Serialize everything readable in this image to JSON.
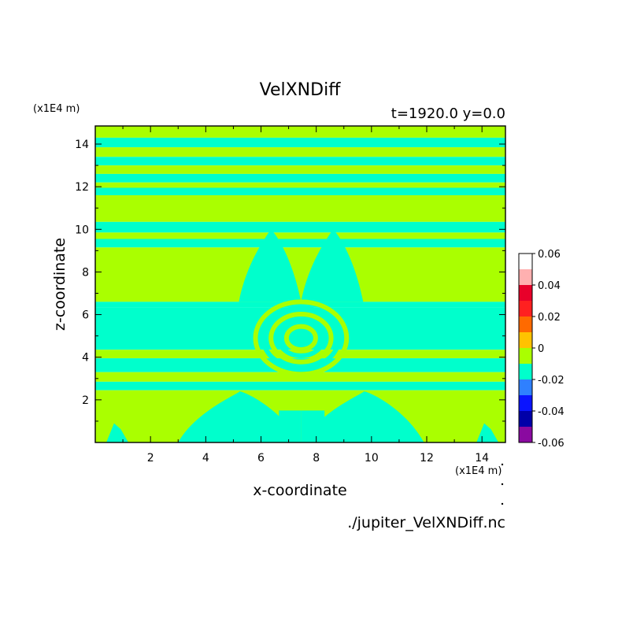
{
  "chart_data": {
    "type": "heatmap",
    "title": "VelXNDiff",
    "subtitle": "t=1920.0 y=0.0",
    "xlabel": "x-coordinate",
    "ylabel": "z-coordinate",
    "x_unit": "(x1E4 m)",
    "y_unit": "(x1E4 m)",
    "xlim": [
      0,
      14.85
    ],
    "ylim": [
      0,
      14.85
    ],
    "x_ticks": [
      "2",
      "4",
      "6",
      "8",
      "10",
      "12",
      "14"
    ],
    "x_tick_values": [
      2,
      4,
      6,
      8,
      10,
      12,
      14
    ],
    "y_ticks": [
      "2",
      "4",
      "6",
      "8",
      "10",
      "12",
      "14"
    ],
    "y_tick_values": [
      2,
      4,
      6,
      8,
      10,
      12,
      14
    ],
    "colorbar": {
      "levels": [
        -0.06,
        -0.05,
        -0.04,
        -0.03,
        -0.02,
        -0.01,
        0,
        0.01,
        0.02,
        0.03,
        0.04,
        0.05,
        0.06
      ],
      "colors": [
        "#8a0aa0",
        "#0000a8",
        "#0a14ff",
        "#2f80ff",
        "#00ffcc",
        "#aaff00",
        "#ffc200",
        "#ff6a00",
        "#ff2020",
        "#e8002a",
        "#ffb0b0",
        "#ffffff"
      ],
      "tick_labels": [
        "0.06",
        "0.04",
        "0.02",
        "0",
        "-0.02",
        "-0.04",
        "-0.06"
      ],
      "tick_values": [
        0.06,
        0.04,
        0.02,
        0,
        -0.02,
        -0.04,
        -0.06
      ]
    },
    "fill_colors": {
      "positive_small": "#aaff00",
      "negative_small": "#00ffcc"
    },
    "horizontal_bands": [
      {
        "z_from": 14.3,
        "z_to": 14.85,
        "value": 0.005
      },
      {
        "z_from": 13.85,
        "z_to": 14.3,
        "value": -0.005
      },
      {
        "z_from": 13.4,
        "z_to": 13.85,
        "value": 0.005
      },
      {
        "z_from": 13.0,
        "z_to": 13.4,
        "value": -0.005
      },
      {
        "z_from": 12.6,
        "z_to": 13.0,
        "value": 0.005
      },
      {
        "z_from": 12.2,
        "z_to": 12.6,
        "value": -0.005
      },
      {
        "z_from": 11.95,
        "z_to": 12.2,
        "value": 0.005
      },
      {
        "z_from": 11.6,
        "z_to": 11.95,
        "value": -0.005
      },
      {
        "z_from": 10.35,
        "z_to": 11.6,
        "value": 0.005
      },
      {
        "z_from": 9.85,
        "z_to": 10.35,
        "value": -0.005
      },
      {
        "z_from": 9.55,
        "z_to": 9.85,
        "value": 0.005
      },
      {
        "z_from": 9.15,
        "z_to": 9.55,
        "value": -0.005
      },
      {
        "z_from": 6.6,
        "z_to": 9.15,
        "value": 0.005
      },
      {
        "z_from": 6.35,
        "z_to": 6.6,
        "value": -0.005
      },
      {
        "z_from": 4.35,
        "z_to": 6.35,
        "value": -0.005
      },
      {
        "z_from": 3.95,
        "z_to": 4.35,
        "value": 0.005
      },
      {
        "z_from": 3.3,
        "z_to": 3.95,
        "value": -0.005
      },
      {
        "z_from": 2.85,
        "z_to": 3.3,
        "value": 0.005
      },
      {
        "z_from": 2.45,
        "z_to": 2.85,
        "value": -0.005
      },
      {
        "z_from": 0,
        "z_to": 2.45,
        "value": 0.005
      }
    ],
    "features": [
      {
        "shape": "plume",
        "x": [
          5.2,
          7.45
        ],
        "z": [
          6.6,
          10.0
        ],
        "value": -0.005
      },
      {
        "shape": "plume",
        "x": [
          7.45,
          9.7
        ],
        "z": [
          6.6,
          10.0
        ],
        "value": -0.005
      },
      {
        "shape": "ring",
        "x": [
          5.8,
          9.1
        ],
        "z": [
          3.2,
          6.6
        ],
        "value": 0.005
      },
      {
        "shape": "column",
        "x": [
          6.65,
          7.45
        ],
        "z": [
          0,
          1.5
        ],
        "value": -0.005
      },
      {
        "shape": "column",
        "x": [
          7.45,
          8.3
        ],
        "z": [
          0,
          1.5
        ],
        "value": -0.005
      },
      {
        "shape": "plume",
        "x": [
          3.0,
          7.4
        ],
        "z": [
          0,
          2.4
        ],
        "value": -0.005
      },
      {
        "shape": "plume",
        "x": [
          7.5,
          11.9
        ],
        "z": [
          0,
          2.4
        ],
        "value": -0.005
      },
      {
        "shape": "spike",
        "x": [
          0.4,
          1.2
        ],
        "z": [
          0,
          0.9
        ],
        "value": -0.005
      },
      {
        "shape": "spike",
        "x": [
          13.8,
          14.6
        ],
        "z": [
          0,
          0.9
        ],
        "value": -0.005
      }
    ]
  },
  "footer": {
    "filename": "./jupiter_VelXNDiff.nc"
  }
}
